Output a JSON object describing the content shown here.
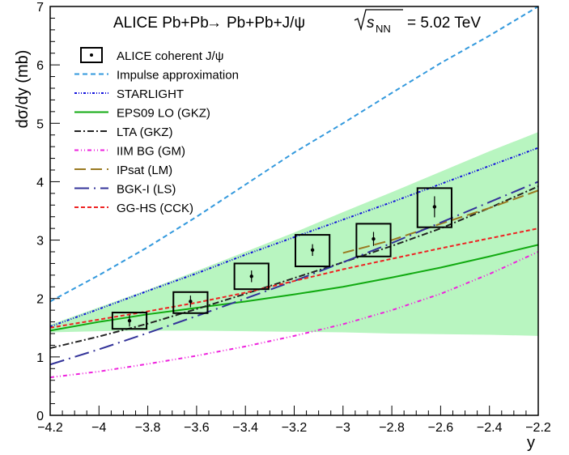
{
  "chart_data": {
    "type": "line",
    "title_parts": {
      "collab": "ALICE Pb+Pb",
      "arrow": "→",
      "reaction": "Pb+Pb+J/ψ",
      "sqrt_s": "s",
      "sqrt_sub": "NN",
      "energy": "= 5.02 TeV"
    },
    "xlabel": "y",
    "ylabel": "dσ/dy (mb)",
    "xlim": [
      -4.2,
      -2.2
    ],
    "ylim": [
      0,
      7
    ],
    "x_ticks": [
      -4.2,
      -4,
      -3.8,
      -3.6,
      -3.4,
      -3.2,
      -3,
      -2.8,
      -2.6,
      -2.4,
      -2.2
    ],
    "x_tick_labels": [
      "−4.2",
      "−4",
      "−3.8",
      "−3.6",
      "−3.4",
      "−3.2",
      "−3",
      "−2.8",
      "−2.6",
      "−2.4",
      "−2.2"
    ],
    "y_ticks": [
      0,
      1,
      2,
      3,
      4,
      5,
      6,
      7
    ],
    "y_tick_labels": [
      "0",
      "1",
      "2",
      "3",
      "4",
      "5",
      "6",
      "7"
    ],
    "legend_position": "top-left",
    "band": {
      "name": "EPS09 LO (GKZ)",
      "color": "#b8f5c0",
      "x": [
        -4.2,
        -4.0,
        -3.8,
        -3.6,
        -3.4,
        -3.2,
        -3.0,
        -2.8,
        -2.6,
        -2.4,
        -2.2
      ],
      "upper": [
        1.55,
        1.85,
        2.15,
        2.47,
        2.8,
        3.13,
        3.48,
        3.82,
        4.17,
        4.52,
        4.85
      ],
      "lower": [
        1.42,
        1.44,
        1.45,
        1.45,
        1.44,
        1.43,
        1.42,
        1.4,
        1.39,
        1.38,
        1.36
      ]
    },
    "series": [
      {
        "name": "Impulse approximation",
        "color": "#3399dd",
        "dash": "6,4",
        "x": [
          -4.2,
          -4.0,
          -3.8,
          -3.6,
          -3.4,
          -3.2,
          -3.0,
          -2.8,
          -2.6,
          -2.4,
          -2.2
        ],
        "y": [
          1.95,
          2.4,
          2.88,
          3.4,
          3.95,
          4.5,
          5.0,
          5.52,
          6.03,
          6.5,
          7.0
        ]
      },
      {
        "name": "STARLIGHT",
        "color": "#1111dd",
        "dash": "3,2,1,2,1,2",
        "x": [
          -4.2,
          -4.0,
          -3.8,
          -3.6,
          -3.4,
          -3.2,
          -3.0,
          -2.8,
          -2.6,
          -2.4,
          -2.2
        ],
        "y": [
          1.52,
          1.82,
          2.13,
          2.43,
          2.75,
          3.05,
          3.35,
          3.65,
          3.96,
          4.27,
          4.58
        ]
      },
      {
        "name": "EPS09 LO (GKZ)",
        "color": "#11aa11",
        "dash": "",
        "x": [
          -4.2,
          -4.0,
          -3.8,
          -3.6,
          -3.4,
          -3.2,
          -3.0,
          -2.8,
          -2.6,
          -2.4,
          -2.2
        ],
        "y": [
          1.45,
          1.6,
          1.73,
          1.84,
          1.95,
          2.07,
          2.2,
          2.36,
          2.53,
          2.72,
          2.92
        ]
      },
      {
        "name": "LTA (GKZ)",
        "color": "#222222",
        "dash": "8,3,2,3",
        "x": [
          -4.2,
          -4.0,
          -3.8,
          -3.6,
          -3.4,
          -3.2,
          -3.0,
          -2.8,
          -2.6,
          -2.4,
          -2.2
        ],
        "y": [
          1.15,
          1.35,
          1.57,
          1.82,
          2.08,
          2.35,
          2.62,
          2.9,
          3.2,
          3.55,
          3.92
        ]
      },
      {
        "name": "IIM BG (GM)",
        "color": "#ee22dd",
        "dash": "5,3,1,3,1,3",
        "x": [
          -4.2,
          -4.0,
          -3.8,
          -3.6,
          -3.4,
          -3.2,
          -3.0,
          -2.8,
          -2.6,
          -2.4,
          -2.2
        ],
        "y": [
          0.65,
          0.75,
          0.88,
          1.02,
          1.18,
          1.36,
          1.56,
          1.8,
          2.08,
          2.42,
          2.8
        ]
      },
      {
        "name": "IPsat (LM)",
        "color": "#9a7a22",
        "dash": "14,6",
        "x": [
          -3.0,
          -2.8,
          -2.6,
          -2.4,
          -2.2
        ],
        "y": [
          2.78,
          3.0,
          3.28,
          3.55,
          3.85
        ]
      },
      {
        "name": "BGK-I (LS)",
        "color": "#333399",
        "dash": "18,6,2,6",
        "x": [
          -4.2,
          -4.0,
          -3.8,
          -3.6,
          -3.4,
          -3.2,
          -3.0,
          -2.8,
          -2.6,
          -2.4,
          -2.2
        ],
        "y": [
          0.87,
          1.13,
          1.41,
          1.7,
          2.0,
          2.3,
          2.62,
          2.95,
          3.3,
          3.65,
          4.0
        ]
      },
      {
        "name": "GG-HS (CCK)",
        "color": "#ee2222",
        "dash": "5,3",
        "x": [
          -4.2,
          -4.0,
          -3.8,
          -3.6,
          -3.4,
          -3.2,
          -3.0,
          -2.8,
          -2.6,
          -2.4,
          -2.2
        ],
        "y": [
          1.5,
          1.64,
          1.78,
          1.93,
          2.1,
          2.3,
          2.5,
          2.68,
          2.86,
          3.03,
          3.2
        ]
      }
    ],
    "data_points": {
      "name": "ALICE coherent J/ψ",
      "x": [
        -3.875,
        -3.625,
        -3.375,
        -3.125,
        -2.875,
        -2.625
      ],
      "y": [
        1.62,
        1.95,
        2.38,
        2.83,
        3.02,
        3.57
      ],
      "stat_err": [
        0.1,
        0.1,
        0.1,
        0.1,
        0.12,
        0.18
      ],
      "syst_lo": [
        0.14,
        0.2,
        0.22,
        0.28,
        0.3,
        0.35
      ],
      "syst_hi": [
        0.14,
        0.16,
        0.22,
        0.26,
        0.26,
        0.32
      ],
      "syst_halfwidth": 0.07
    }
  }
}
